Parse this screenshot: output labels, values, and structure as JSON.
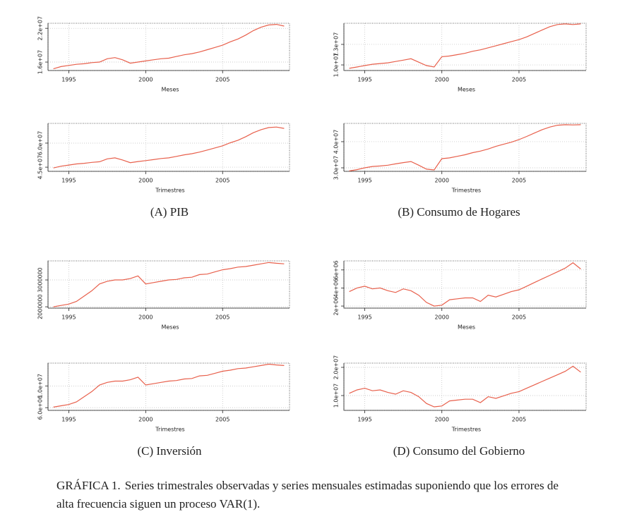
{
  "chart_data": [
    {
      "type": "line",
      "xlabel": "Meses",
      "x": [
        1994,
        1994.5,
        1995,
        1995.5,
        1996,
        1996.5,
        1997,
        1997.5,
        1998,
        1998.5,
        1999,
        1999.5,
        2000,
        2000.5,
        2001,
        2001.5,
        2002,
        2002.5,
        2003,
        2003.5,
        2004,
        2004.5,
        2005,
        2005.5,
        2006,
        2006.5,
        2007,
        2007.5,
        2008,
        2008.5,
        2009
      ],
      "xlim": [
        1993.65,
        2009.35
      ],
      "xticks": [
        1995,
        2000,
        2005
      ],
      "ylim": [
        14500000,
        22900000
      ],
      "yticks": [
        {
          "value": 16000000,
          "label": "1.6e+07"
        },
        {
          "value": 22000000,
          "label": "2.2e+07"
        }
      ],
      "color": "#e8604c",
      "grid": true,
      "values": [
        14800000.0,
        15200000.0,
        15400000.0,
        15600000.0,
        15700000.0,
        15900000.0,
        16000000.0,
        16600000.0,
        16800000.0,
        16400000.0,
        15800000.0,
        16000000.0,
        16200000.0,
        16400000.0,
        16600000.0,
        16700000.0,
        17000000.0,
        17300000.0,
        17500000.0,
        17800000.0,
        18200000.0,
        18600000.0,
        19000000.0,
        19600000.0,
        20100000.0,
        20800000.0,
        21600000.0,
        22200000.0,
        22600000.0,
        22700000.0,
        22400000.0
      ]
    },
    {
      "type": "line",
      "xlabel": "Meses",
      "x": [
        1994,
        1994.5,
        1995,
        1995.5,
        1996,
        1996.5,
        1997,
        1997.5,
        1998,
        1998.5,
        1999,
        1999.5,
        2000,
        2000.5,
        2001,
        2001.5,
        2002,
        2002.5,
        2003,
        2003.5,
        2004,
        2004.5,
        2005,
        2005.5,
        2006,
        2006.5,
        2007,
        2007.5,
        2008,
        2008.5,
        2009
      ],
      "xlim": [
        1993.65,
        2009.35
      ],
      "xticks": [
        1995,
        2000,
        2005
      ],
      "ylim": [
        9180000,
        16090000
      ],
      "yticks": [
        {
          "value": 10000000,
          "label": "1.0e+07"
        },
        {
          "value": 13000000,
          "label": "1.3e+07"
        }
      ],
      "color": "#e8604c",
      "grid": true,
      "values": [
        9500000.0,
        9700000.0,
        9900000.0,
        10100000.0,
        10200000.0,
        10300000.0,
        10500000.0,
        10700000.0,
        10900000.0,
        10400000.0,
        9900000.0,
        9700000.0,
        11200000.0,
        11300000.0,
        11500000.0,
        11700000.0,
        12000000.0,
        12200000.0,
        12500000.0,
        12800000.0,
        13100000.0,
        13400000.0,
        13700000.0,
        14100000.0,
        14600000.0,
        15100000.0,
        15600000.0,
        15900000.0,
        16000000.0,
        15900000.0,
        16000000.0
      ]
    },
    {
      "type": "line",
      "xlabel": "Trimestres",
      "x": [
        1994,
        1994.5,
        1995,
        1995.5,
        1996,
        1996.5,
        1997,
        1997.5,
        1998,
        1998.5,
        1999,
        1999.5,
        2000,
        2000.5,
        2001,
        2001.5,
        2002,
        2002.5,
        2003,
        2003.5,
        2004,
        2004.5,
        2005,
        2005.5,
        2006,
        2006.5,
        2007,
        2007.5,
        2008,
        2008.5,
        2009
      ],
      "xlim": [
        1993.65,
        2009.35
      ],
      "xticks": [
        1995,
        2000,
        2005
      ],
      "ylim": [
        42400000,
        72300000
      ],
      "yticks": [
        {
          "value": 45000000,
          "label": "4.5e+07"
        },
        {
          "value": 60000000,
          "label": "6.0e+07"
        }
      ],
      "color": "#e8604c",
      "grid": true,
      "values": [
        44500000.0,
        45600000.0,
        46300000.0,
        47000000.0,
        47400000.0,
        48000000.0,
        48400000.0,
        50200000.0,
        50800000.0,
        49500000.0,
        47800000.0,
        48500000.0,
        49100000.0,
        49700000.0,
        50400000.0,
        50800000.0,
        51700000.0,
        52700000.0,
        53400000.0,
        54400000.0,
        55700000.0,
        57000000.0,
        58300000.0,
        60200000.0,
        61800000.0,
        64000000.0,
        66500000.0,
        68400000.0,
        69700000.0,
        70000000.0,
        69200000.0
      ]
    },
    {
      "type": "line",
      "xlabel": "Trimestres",
      "x": [
        1994,
        1994.5,
        1995,
        1995.5,
        1996,
        1996.5,
        1997,
        1997.5,
        1998,
        1998.5,
        1999,
        1999.5,
        2000,
        2000.5,
        2001,
        2001.5,
        2002,
        2002.5,
        2003,
        2003.5,
        2004,
        2004.5,
        2005,
        2005.5,
        2006,
        2006.5,
        2007,
        2007.5,
        2008,
        2008.5,
        2009
      ],
      "xlim": [
        1993.65,
        2009.35
      ],
      "xticks": [
        1995,
        2000,
        2005
      ],
      "ylim": [
        28650000,
        47000000
      ],
      "yticks": [
        {
          "value": 30000000,
          "label": "3.0e+07"
        },
        {
          "value": 40000000,
          "label": "4.0e+07"
        }
      ],
      "color": "#e8604c",
      "grid": true,
      "values": [
        28800000.0,
        29300000.0,
        30000000.0,
        30500000.0,
        30700000.0,
        31000000.0,
        31500000.0,
        32000000.0,
        32400000.0,
        31000000.0,
        29500000.0,
        29200000.0,
        33500000.0,
        33800000.0,
        34400000.0,
        35000000.0,
        35800000.0,
        36400000.0,
        37200000.0,
        38200000.0,
        39000000.0,
        39800000.0,
        40800000.0,
        42000000.0,
        43300000.0,
        44600000.0,
        45600000.0,
        46300000.0,
        46500000.0,
        46400000.0,
        46500000.0
      ]
    },
    {
      "type": "line",
      "xlabel": "Meses",
      "x": [
        1994,
        1994.5,
        1995,
        1995.5,
        1996,
        1996.5,
        1997,
        1997.5,
        1998,
        1998.5,
        1999,
        1999.5,
        2000,
        2000.5,
        2001,
        2001.5,
        2002,
        2002.5,
        2003,
        2003.5,
        2004,
        2004.5,
        2005,
        2005.5,
        2006,
        2006.5,
        2007,
        2007.5,
        2008,
        2008.5,
        2009
      ],
      "xlim": [
        1993.65,
        2009.35
      ],
      "xticks": [
        1995,
        2000,
        2005
      ],
      "ylim": [
        1950000,
        3710000
      ],
      "yticks": [
        2000000,
        3000000
      ],
      "color": "#e8604c",
      "grid": true,
      "values": [
        2000000.0,
        2050000.0,
        2100000.0,
        2200000.0,
        2400000.0,
        2600000.0,
        2850000.0,
        2950000.0,
        3000000.0,
        3000000.0,
        3050000.0,
        3150000.0,
        2850000.0,
        2900000.0,
        2950000.0,
        3000000.0,
        3020000.0,
        3080000.0,
        3100000.0,
        3200000.0,
        3220000.0,
        3300000.0,
        3380000.0,
        3420000.0,
        3480000.0,
        3500000.0,
        3550000.0,
        3600000.0,
        3650000.0,
        3620000.0,
        3600000.0
      ]
    },
    {
      "type": "line",
      "xlabel": "Meses",
      "x": [
        1994,
        1994.5,
        1995,
        1995.5,
        1996,
        1996.5,
        1997,
        1997.5,
        1998,
        1998.5,
        1999,
        1999.5,
        2000,
        2000.5,
        2001,
        2001.5,
        2002,
        2002.5,
        2003,
        2003.5,
        2004,
        2004.5,
        2005,
        2005.5,
        2006,
        2006.5,
        2007,
        2007.5,
        2008,
        2008.5,
        2009
      ],
      "xlim": [
        1993.65,
        2009.35
      ],
      "xticks": [
        1995,
        2000,
        2005
      ],
      "ylim": [
        1770000,
        7000000
      ],
      "yticks": [
        {
          "value": 2000000,
          "label": "2e+06"
        },
        {
          "value": 4000000,
          "label": "4e+06"
        },
        {
          "value": 6000000,
          "label": "6e+06"
        }
      ],
      "color": "#e8604c",
      "grid": true,
      "values": [
        3600000.0,
        4000000.0,
        4200000.0,
        3900000.0,
        4000000.0,
        3700000.0,
        3500000.0,
        3900000.0,
        3700000.0,
        3200000.0,
        2400000.0,
        2000000.0,
        2100000.0,
        2700000.0,
        2800000.0,
        2900000.0,
        2900000.0,
        2500000.0,
        3200000.0,
        3000000.0,
        3300000.0,
        3600000.0,
        3800000.0,
        4200000.0,
        4600000.0,
        5000000.0,
        5400000.0,
        5800000.0,
        6200000.0,
        6800000.0,
        6100000.0
      ]
    },
    {
      "type": "line",
      "xlabel": "Trimestres",
      "x": [
        1994,
        1994.5,
        1995,
        1995.5,
        1996,
        1996.5,
        1997,
        1997.5,
        1998,
        1998.5,
        1999,
        1999.5,
        2000,
        2000.5,
        2001,
        2001.5,
        2002,
        2002.5,
        2003,
        2003.5,
        2004,
        2004.5,
        2005,
        2005.5,
        2006,
        2006.5,
        2007,
        2007.5,
        2008,
        2008.5,
        2009
      ],
      "xlim": [
        1993.65,
        2009.35
      ],
      "xticks": [
        1995,
        2000,
        2005
      ],
      "ylim": [
        5500000,
        14200000
      ],
      "yticks": [
        {
          "value": 6000000,
          "label": "6.0e+06"
        },
        {
          "value": 10000000,
          "label": "1.0e+07"
        }
      ],
      "color": "#e8604c",
      "grid": true,
      "values": [
        6100000.0,
        6340000.0,
        6580000.0,
        7060000.0,
        8020000.0,
        8970000.0,
        10170000.0,
        10650000.0,
        10890000.0,
        10890000.0,
        11130000.0,
        11610000.0,
        10170000.0,
        10410000.0,
        10650000.0,
        10890000.0,
        10990000.0,
        11280000.0,
        11370000.0,
        11850000.0,
        11950000.0,
        12330000.0,
        12710000.0,
        12900000.0,
        13190000.0,
        13290000.0,
        13520000.0,
        13760000.0,
        14000000.0,
        13860000.0,
        13760000.0
      ]
    },
    {
      "type": "line",
      "xlabel": "Trimestres",
      "x": [
        1994,
        1994.5,
        1995,
        1995.5,
        1996,
        1996.5,
        1997,
        1997.5,
        1998,
        1998.5,
        1999,
        1999.5,
        2000,
        2000.5,
        2001,
        2001.5,
        2002,
        2002.5,
        2003,
        2003.5,
        2004,
        2004.5,
        2005,
        2005.5,
        2006,
        2006.5,
        2007,
        2007.5,
        2008,
        2008.5,
        2009
      ],
      "xlim": [
        1993.65,
        2009.35
      ],
      "xticks": [
        1995,
        2000,
        2005
      ],
      "ylim": [
        4750000,
        21500000
      ],
      "yticks": [
        {
          "value": 10000000,
          "label": "1.0e+07"
        },
        {
          "value": 20000000,
          "label": "2.0e+07"
        }
      ],
      "color": "#e8604c",
      "grid": true,
      "values": [
        10800000.0,
        12000000.0,
        12600000.0,
        11700000.0,
        12000000.0,
        11100000.0,
        10500000.0,
        11700000.0,
        11100000.0,
        9600000.0,
        7200000.0,
        6000000.0,
        6300000.0,
        8100000.0,
        8400000.0,
        8700000.0,
        8700000.0,
        7500000.0,
        9600000.0,
        9000000.0,
        9900000.0,
        10800000.0,
        11400000.0,
        12600000.0,
        13800000.0,
        15000000.0,
        16200000.0,
        17400000.0,
        18600000.0,
        20400000.0,
        18300000.0
      ]
    }
  ],
  "panels": [
    "(A) PIB",
    "(B) Consumo de Hogares",
    "(C) Inversión",
    "(D) Consumo del Gobierno"
  ],
  "caption": {
    "label": "GRÁFICA 1.",
    "text": "Series trimestrales observadas y series mensuales estimadas suponiendo que los errores de alta frecuencia siguen un proceso VAR(1)."
  }
}
